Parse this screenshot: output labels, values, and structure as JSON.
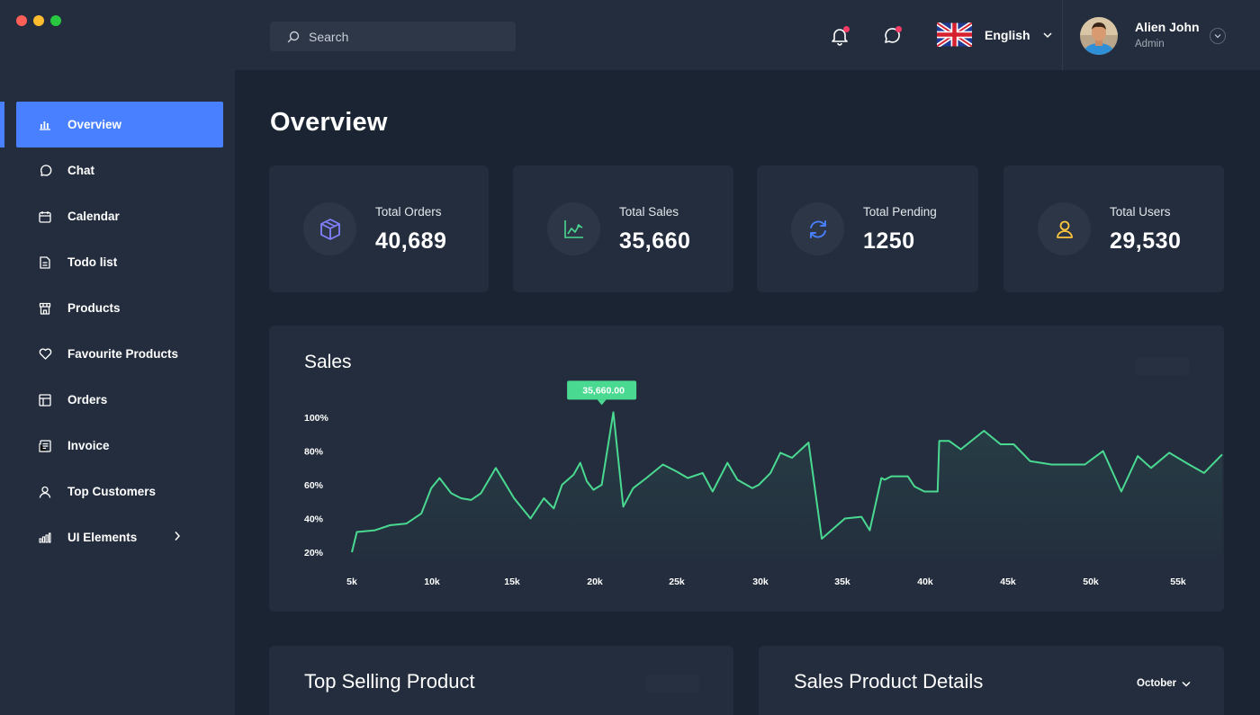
{
  "search": {
    "placeholder": "Search"
  },
  "header": {
    "language": "English",
    "user": {
      "name": "Alien John",
      "role": "Admin"
    }
  },
  "sidebar": {
    "items": [
      {
        "label": "Overview",
        "icon": "bar-chart-icon",
        "active": true
      },
      {
        "label": "Chat",
        "icon": "chat-icon"
      },
      {
        "label": "Calendar",
        "icon": "calendar-icon"
      },
      {
        "label": "Todo list",
        "icon": "document-icon"
      },
      {
        "label": "Products",
        "icon": "store-icon"
      },
      {
        "label": "Favourite Products",
        "icon": "heart-icon"
      },
      {
        "label": "Orders",
        "icon": "orders-icon"
      },
      {
        "label": "Invoice",
        "icon": "invoice-icon"
      },
      {
        "label": "Top Customers",
        "icon": "user-icon"
      },
      {
        "label": "UI Elements",
        "icon": "bars-icon",
        "has_submenu": true
      }
    ]
  },
  "page": {
    "title": "Overview"
  },
  "stats": [
    {
      "label": "Total Orders",
      "value": "40,689",
      "icon": "box-icon",
      "color": "#8280ff"
    },
    {
      "label": "Total Sales",
      "value": "35,660",
      "icon": "trend-icon",
      "color": "#4ad991"
    },
    {
      "label": "Total Pending",
      "value": "1250",
      "icon": "refresh-icon",
      "color": "#4880ff"
    },
    {
      "label": "Total Users",
      "value": "29,530",
      "icon": "user-icon",
      "color": "#fec53d"
    }
  ],
  "sales_panel": {
    "title": "Sales"
  },
  "chart_data": {
    "type": "area",
    "title": "Sales",
    "y_tick_labels": [
      "20%",
      "40%",
      "60%",
      "80%",
      "100%"
    ],
    "x_tick_labels": [
      "5k",
      "10k",
      "15k",
      "20k",
      "25k",
      "30k",
      "35k",
      "40k",
      "45k",
      "50k",
      "55k"
    ],
    "xlim": [
      5000,
      57600
    ],
    "ylim": [
      20,
      100
    ],
    "grid": false,
    "legend": "none",
    "color": "#4ad991",
    "series": [
      {
        "x": [
          5000,
          5300,
          6400,
          7300,
          8300,
          9200,
          9800,
          10300,
          11000,
          11600,
          12200,
          12800,
          13700,
          14800,
          15800,
          16600,
          17200,
          17700,
          18400,
          18800,
          19200,
          19600,
          20100,
          20800,
          21400,
          22000,
          22800,
          23800,
          24600,
          25300,
          26200,
          26800,
          27700,
          28300,
          29200,
          29600,
          30300,
          30900,
          31600,
          32600,
          33400,
          34800,
          35800,
          36300,
          37000,
          37200,
          37600,
          38100,
          38600,
          39000,
          39600,
          40400,
          40500,
          41100,
          41800,
          43200,
          44200,
          45000,
          46000,
          47300,
          48500,
          49300,
          50400,
          51500,
          52500,
          53300,
          54400,
          55600,
          56500,
          57600
        ],
        "y": [
          20,
          32,
          33,
          36,
          37,
          43,
          58,
          64,
          55,
          52,
          51,
          55,
          70,
          52,
          40,
          52,
          46,
          60,
          66,
          73,
          62,
          57,
          60,
          103,
          47,
          58,
          64,
          72,
          68,
          64,
          67,
          56,
          73,
          63,
          58,
          60,
          67,
          79,
          76,
          85,
          28,
          40,
          41,
          33,
          64,
          63,
          65,
          65,
          65,
          59,
          56,
          56,
          86,
          86,
          81,
          92,
          84,
          84,
          74,
          72,
          72,
          72,
          80,
          56,
          77,
          70,
          79,
          72,
          67,
          78
        ]
      }
    ],
    "annotations": [
      {
        "x": 20100,
        "y": 103,
        "text": "35,660.00"
      }
    ]
  },
  "bottom_panels": [
    {
      "title": "Top Selling Product"
    },
    {
      "title": "Sales Product Details",
      "dropdown": "October"
    }
  ]
}
